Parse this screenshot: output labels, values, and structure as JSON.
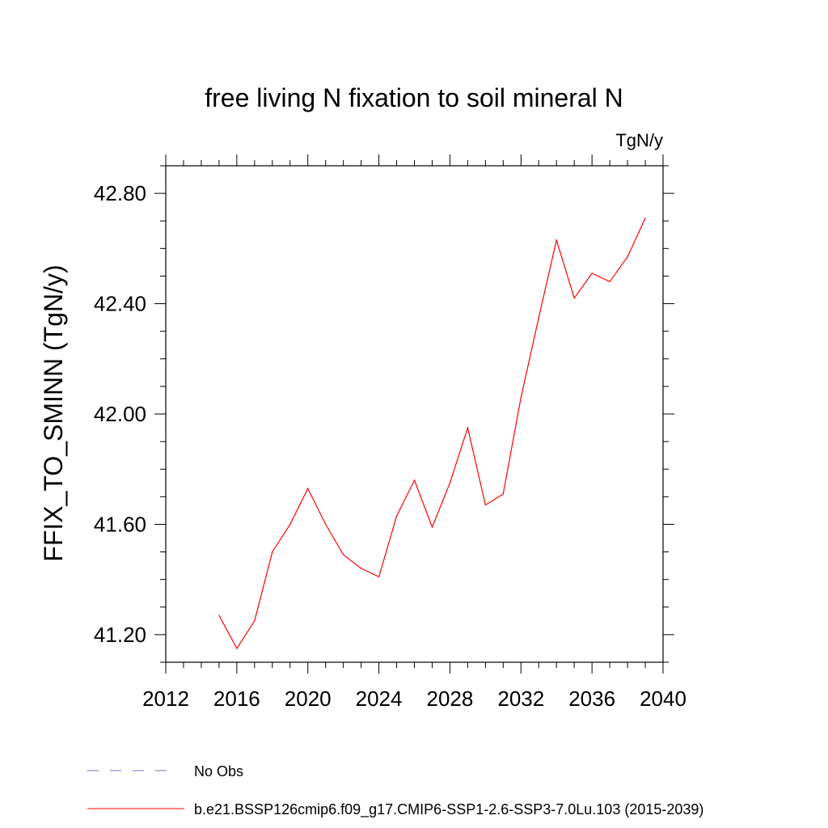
{
  "chart_data": {
    "type": "line",
    "title": "free living N fixation to soil mineral N",
    "units_label": "TgN/y",
    "ylabel": "FFIX_TO_SMINN  (TgN/y)",
    "xlabel": "",
    "xlim": [
      2012,
      2040
    ],
    "ylim": [
      41.1,
      42.9
    ],
    "x_ticks": [
      2012,
      2016,
      2020,
      2024,
      2028,
      2032,
      2036,
      2040
    ],
    "x_tick_labels": [
      "2012",
      "2016",
      "2020",
      "2024",
      "2028",
      "2032",
      "2036",
      "2040"
    ],
    "y_ticks": [
      41.2,
      41.6,
      42.0,
      42.4,
      42.8
    ],
    "y_tick_labels": [
      "41.20",
      "41.60",
      "42.00",
      "42.40",
      "42.80"
    ],
    "grid": false,
    "legend_position": "bottom",
    "legend": [
      {
        "label": "No Obs",
        "color": "#7b6fb5",
        "style": "dashed"
      },
      {
        "label": "b.e21.BSSP126cmip6.f09_g17.CMIP6-SSP1-2.6-SSP3-7.0Lu.103 (2015-2039)",
        "color": "#ff0000",
        "style": "solid"
      }
    ],
    "series": [
      {
        "name": "b.e21.BSSP126cmip6.f09_g17.CMIP6-SSP1-2.6-SSP3-7.0Lu.103 (2015-2039)",
        "color": "#ff0000",
        "x": [
          2015,
          2016,
          2017,
          2018,
          2019,
          2020,
          2021,
          2022,
          2023,
          2024,
          2025,
          2026,
          2027,
          2028,
          2029,
          2030,
          2031,
          2032,
          2033,
          2034,
          2035,
          2036,
          2037,
          2038,
          2039
        ],
        "y": [
          41.27,
          41.15,
          41.25,
          41.5,
          41.6,
          41.73,
          41.6,
          41.49,
          41.44,
          41.41,
          41.63,
          41.76,
          41.59,
          41.75,
          41.95,
          41.67,
          41.71,
          42.06,
          42.35,
          42.63,
          42.42,
          42.51,
          42.48,
          42.57,
          42.71
        ]
      }
    ]
  }
}
